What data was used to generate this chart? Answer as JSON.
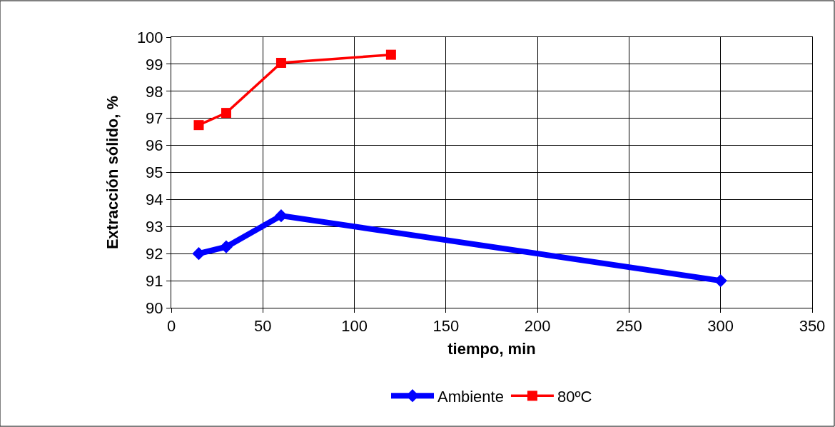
{
  "chart_data": {
    "type": "line",
    "xlabel": "tiempo, min",
    "ylabel": "Extracción sólido, %",
    "xlim": [
      0,
      350
    ],
    "xticks": [
      0,
      50,
      100,
      150,
      200,
      250,
      300,
      350
    ],
    "ylim": [
      90,
      100
    ],
    "yticks": [
      90,
      91,
      92,
      93,
      94,
      95,
      96,
      97,
      98,
      99,
      100
    ],
    "grid": true,
    "legend": "bottom",
    "line_style": "solid",
    "series": [
      {
        "name": "Ambiente",
        "color": "#0000ff",
        "marker": "diamond",
        "x": [
          15,
          30,
          60,
          300
        ],
        "values": [
          92.0,
          92.25,
          93.4,
          91.0
        ]
      },
      {
        "name": "80ºC",
        "color": "#ff0000",
        "marker": "square",
        "x": [
          15,
          30,
          60,
          120
        ],
        "values": [
          96.75,
          97.2,
          99.05,
          99.35
        ]
      }
    ]
  }
}
